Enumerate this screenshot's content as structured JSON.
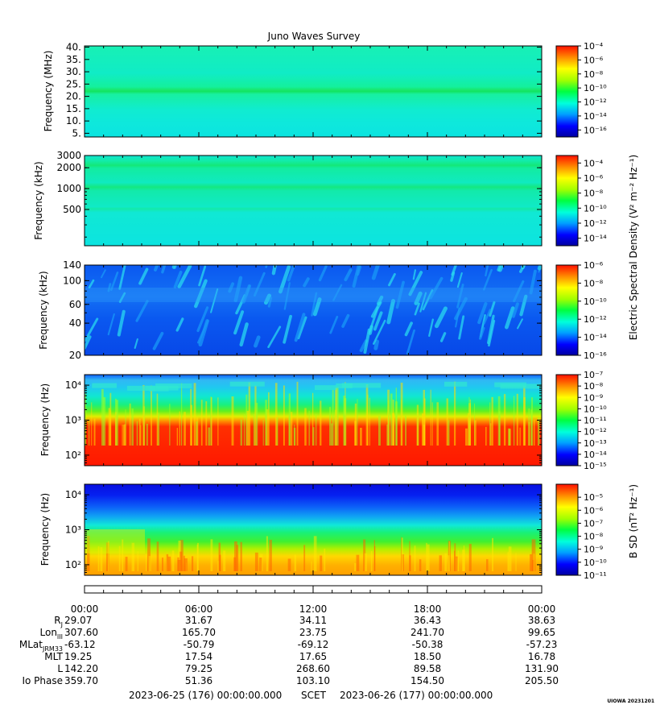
{
  "title": "Juno Waves Survey",
  "credit": "UIOWA 20231201",
  "colorbar_labels": {
    "electric": "Electric Spectral Density (V² m⁻² Hz⁻¹)",
    "magnetic": "B SD (nT² Hz⁻¹)"
  },
  "colors": {
    "colormap": [
      "#0000a0",
      "#0000ff",
      "#00a0ff",
      "#00ffdc",
      "#00ff40",
      "#a0ff00",
      "#ffff00",
      "#ff9000",
      "#ff1000"
    ]
  },
  "chart_data": [
    {
      "type": "heatmap",
      "ylabel": "Frequency (MHz)",
      "y_scale": "linear",
      "ylim": [
        3.5,
        40.5
      ],
      "yticks": [
        5,
        10,
        15,
        20,
        25,
        30,
        35,
        40
      ],
      "ytick_labels": [
        "5.",
        "10.",
        "15.",
        "20.",
        "25.",
        "30.",
        "35.",
        "40."
      ],
      "cbar": {
        "scale": "log",
        "range_exp": [
          -17,
          -4
        ],
        "tick_exps": [
          -4,
          -6,
          -8,
          -10,
          -12,
          -14,
          -16
        ]
      },
      "description": "nearly uniform background; bright band near 21 MHz"
    },
    {
      "type": "heatmap",
      "ylabel": "Frequency (kHz)",
      "y_scale": "log",
      "ylim": [
        150,
        3000
      ],
      "yticks": [
        500,
        1000,
        2000,
        3000
      ],
      "ytick_labels": [
        "500",
        "1000",
        "2000",
        "3000"
      ],
      "cbar": {
        "scale": "log",
        "range_exp": [
          -15,
          -3
        ],
        "tick_exps": [
          -4,
          -6,
          -8,
          -10,
          -12,
          -14
        ]
      },
      "description": "uniform background with bands near 500, 1000 and 2000 kHz"
    },
    {
      "type": "heatmap",
      "ylabel": "Frequency (kHz)",
      "y_scale": "log",
      "ylim": [
        20,
        140
      ],
      "yticks": [
        20,
        40,
        60,
        100,
        140
      ],
      "ytick_labels": [
        "20",
        "40",
        "60",
        "100",
        "140"
      ],
      "cbar": {
        "scale": "log",
        "range_exp": [
          -16,
          -6
        ],
        "tick_exps": [
          -6,
          -8,
          -10,
          -12,
          -14,
          -16
        ]
      },
      "description": "blue background with streaky cyan emissions"
    },
    {
      "type": "heatmap",
      "ylabel": "Frequency (Hz)",
      "y_scale": "log",
      "ylim": [
        50,
        20000
      ],
      "yticks": [
        100,
        1000,
        10000
      ],
      "ytick_labels": [
        "10²",
        "10³",
        "10⁴"
      ],
      "cbar": {
        "scale": "log",
        "range_exp": [
          -15,
          -7
        ],
        "tick_exps": [
          -7,
          -8,
          -9,
          -10,
          -11,
          -12,
          -13,
          -14,
          -15
        ]
      },
      "description": "intense red below ~1 kHz, green/cyan above, blue near 10 kHz"
    },
    {
      "type": "heatmap",
      "ylabel": "Frequency (Hz)",
      "y_scale": "log",
      "ylim": [
        50,
        20000
      ],
      "yticks": [
        100,
        1000,
        10000
      ],
      "ytick_labels": [
        "10²",
        "10³",
        "10⁴"
      ],
      "cbar": {
        "scale": "log",
        "range_exp": [
          -11,
          -4
        ],
        "tick_exps": [
          -5,
          -6,
          -7,
          -8,
          -9,
          -10,
          -11
        ]
      },
      "description": "orange/yellow below ~300 Hz, green around 1 kHz, blue above 3 kHz"
    }
  ],
  "time_axis": {
    "tick_labels": [
      "00:00",
      "06:00",
      "12:00",
      "18:00",
      "00:00"
    ],
    "major_ticks_hours": [
      0,
      6,
      12,
      18,
      24
    ],
    "minor_tick_step_hours": 1
  },
  "ephemeris": [
    {
      "label": "R_J",
      "values": [
        "29.07",
        "31.67",
        "34.11",
        "36.43",
        "38.63"
      ]
    },
    {
      "label": "Lon_III",
      "values": [
        "307.60",
        "165.70",
        "23.75",
        "241.70",
        "99.65"
      ]
    },
    {
      "label": "MLat_JRM33",
      "values": [
        "-63.12",
        "-50.79",
        "-69.12",
        "-50.38",
        "-57.23"
      ]
    },
    {
      "label": "MLT",
      "values": [
        "19.25",
        "17.54",
        "17.65",
        "18.50",
        "16.78"
      ]
    },
    {
      "label": "L",
      "values": [
        "142.20",
        "79.25",
        "268.60",
        "89.58",
        "131.90"
      ]
    },
    {
      "label": "Io Phase",
      "values": [
        "359.70",
        "51.36",
        "103.10",
        "154.50",
        "205.50"
      ]
    }
  ],
  "scet": {
    "start": "2023-06-25 (176) 00:00:00.000",
    "label": "SCET",
    "end": "2023-06-26 (177) 00:00:00.000"
  }
}
